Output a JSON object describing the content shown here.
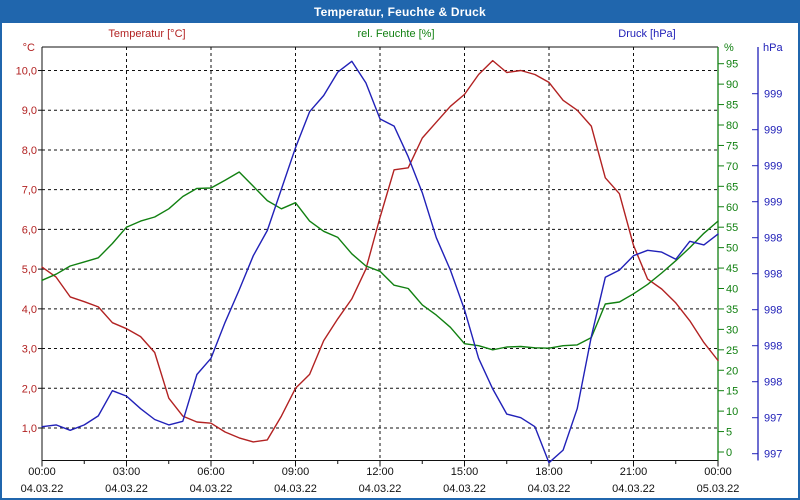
{
  "window": {
    "title": "Temperatur, Feuchte & Druck",
    "titlebar_color": "#2066ad"
  },
  "legend": {
    "temperature_label": "Temperatur [°C]",
    "humidity_label": "rel. Feuchte [%]",
    "pressure_label": "Druck [hPa]"
  },
  "colors": {
    "temperature": "#b22222",
    "humidity": "#118011",
    "pressure": "#2121b8",
    "grid": "#111111",
    "frame": "#111111",
    "text": "#111111"
  },
  "axes": {
    "temperature": {
      "unit": "°C",
      "tick_values": [
        10,
        9,
        8,
        7,
        6,
        5,
        4,
        3,
        2,
        1
      ],
      "tick_labels_top_to_bottom": [
        "10,0",
        "9,0",
        "8,0",
        "7,0",
        "6,0",
        "5,0",
        "4,0",
        "3,0",
        "2,0",
        "1,0"
      ]
    },
    "humidity": {
      "unit": "%",
      "tick_values": [
        0,
        5,
        10,
        15,
        20,
        25,
        30,
        35,
        40,
        45,
        50,
        55,
        60,
        65,
        70,
        75,
        80,
        85,
        90,
        95
      ]
    },
    "pressure": {
      "unit": "hPa",
      "tick_labels_bottom_to_top": [
        "997",
        "997",
        "998",
        "998",
        "998",
        "998",
        "998",
        "999",
        "999",
        "999",
        "999"
      ]
    },
    "x": {
      "time_labels": [
        "00:00",
        "03:00",
        "06:00",
        "09:00",
        "12:00",
        "15:00",
        "18:00",
        "21:00",
        "00:00"
      ],
      "date_labels": [
        "04.03.22",
        "04.03.22",
        "04.03.22",
        "04.03.22",
        "04.03.22",
        "04.03.22",
        "04.03.22",
        "04.03.22",
        "05.03.22"
      ]
    }
  },
  "chart_data": {
    "type": "line",
    "title": "Temperatur, Feuchte & Druck",
    "grid": "dashed",
    "x_unit": "hours",
    "x_range": [
      0,
      24
    ],
    "x_hours": [
      0,
      0.5,
      1,
      1.5,
      2,
      2.5,
      3,
      3.5,
      4,
      4.5,
      5,
      5.5,
      6,
      6.5,
      7,
      7.5,
      8,
      8.5,
      9,
      9.5,
      10,
      10.5,
      11,
      11.5,
      12,
      12.5,
      13,
      13.5,
      14,
      14.5,
      15,
      15.5,
      16,
      16.5,
      17,
      17.5,
      18,
      18.5,
      19,
      19.5,
      20,
      20.5,
      21,
      21.5,
      22,
      22.5,
      23,
      23.5,
      24
    ],
    "axis_ranges": {
      "temperature_ticks": [
        1.0,
        10.0
      ],
      "humidity_ticks": [
        0,
        95
      ],
      "pressure_ticks": [
        997.2,
        999.2
      ]
    },
    "series": [
      {
        "name": "Temperatur [°C]",
        "axis": "temperature",
        "color": "#b22222",
        "values": [
          5.05,
          4.8,
          4.3,
          4.18,
          4.05,
          3.65,
          3.5,
          3.3,
          2.9,
          1.75,
          1.3,
          1.15,
          1.12,
          0.9,
          0.75,
          0.65,
          0.7,
          1.3,
          2.0,
          2.35,
          3.2,
          3.75,
          4.25,
          5.0,
          6.3,
          7.5,
          7.55,
          8.3,
          8.7,
          9.1,
          9.4,
          9.9,
          10.25,
          9.95,
          10.0,
          9.9,
          9.7,
          9.25,
          9.0,
          8.6,
          7.3,
          6.9,
          5.6,
          4.75,
          4.5,
          4.15,
          3.7,
          3.15,
          2.7
        ]
      },
      {
        "name": "rel. Feuchte [%]",
        "axis": "humidity",
        "color": "#118011",
        "values": [
          42,
          43.5,
          45.5,
          46.5,
          47.5,
          51,
          55,
          56.5,
          57.5,
          59.5,
          62.5,
          64.5,
          64.6,
          66.5,
          68.5,
          65,
          61.5,
          59.5,
          61,
          56.5,
          54,
          52.5,
          48.5,
          45.5,
          44.2,
          40.8,
          40,
          36,
          33.5,
          30.5,
          26.5,
          26,
          25,
          25.7,
          25.8,
          25.5,
          25.4,
          26,
          26.2,
          28,
          36.2,
          36.7,
          38.7,
          41,
          43.8,
          46.8,
          50,
          53.5,
          56.5
        ]
      },
      {
        "name": "Druck [hPa]",
        "axis": "pressure",
        "color": "#2121b8",
        "values": [
          997.35,
          997.36,
          997.33,
          997.36,
          997.41,
          997.55,
          997.52,
          997.45,
          997.39,
          997.36,
          997.38,
          997.64,
          997.73,
          997.93,
          998.11,
          998.3,
          998.44,
          998.67,
          998.9,
          999.1,
          999.19,
          999.32,
          999.38,
          999.26,
          999.06,
          999.02,
          998.85,
          998.65,
          998.4,
          998.22,
          998.0,
          997.73,
          997.56,
          997.42,
          997.4,
          997.35,
          997.15,
          997.22,
          997.45,
          997.85,
          998.18,
          998.22,
          998.3,
          998.33,
          998.32,
          998.28,
          998.38,
          998.36,
          998.42
        ]
      }
    ]
  }
}
